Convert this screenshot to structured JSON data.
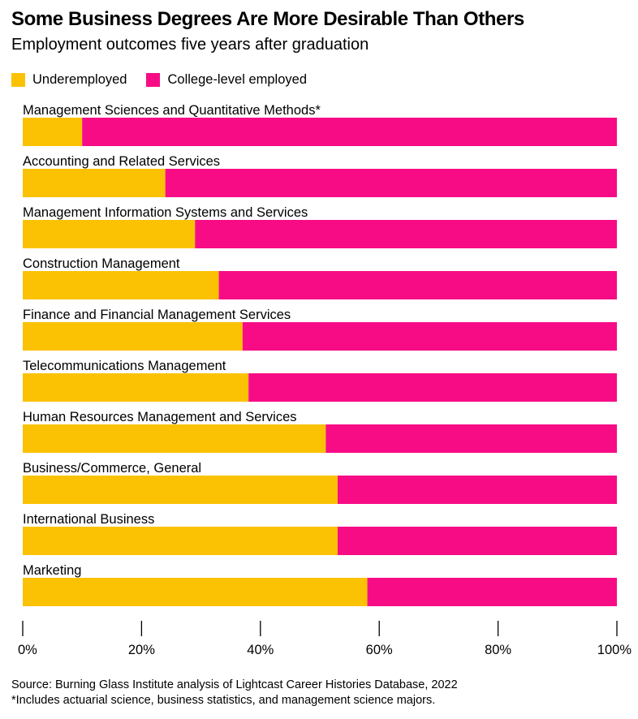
{
  "colors": {
    "underemployed": "#FBC203",
    "college": "#F70C86"
  },
  "chart_data": {
    "type": "bar",
    "orientation": "horizontal",
    "stacked": true,
    "title": "Some Business Degrees Are More Desirable Than Others",
    "subtitle": "Employment outcomes five years after graduation",
    "categories": [
      "Management Sciences and Quantitative Methods*",
      "Accounting and Related Services",
      "Management Information Systems and Services",
      "Construction Management",
      "Finance and Financial Management Services",
      "Telecommunications Management",
      "Human Resources Management and Services",
      "Business/Commerce, General",
      "International Business",
      "Marketing"
    ],
    "series": [
      {
        "name": "Underemployed",
        "values": [
          10,
          24,
          29,
          33,
          37,
          38,
          51,
          53,
          53,
          58
        ]
      },
      {
        "name": "College-level employed",
        "values": [
          90,
          76,
          71,
          67,
          63,
          62,
          49,
          47,
          47,
          42
        ]
      }
    ],
    "xlim": [
      0,
      100
    ],
    "xticks": [
      "0%",
      "20%",
      "40%",
      "60%",
      "80%",
      "100%"
    ],
    "legend": "top-left",
    "grid": false
  },
  "footer": {
    "source": "Source: Burning Glass Institute analysis of Lightcast Career Histories Database, 2022",
    "note": "*Includes actuarial science, business statistics, and management science majors."
  }
}
